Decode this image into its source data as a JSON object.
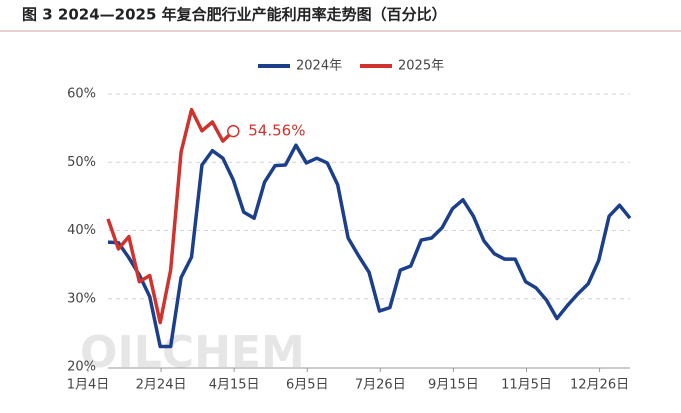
{
  "chart_data": {
    "type": "line",
    "title": "图 3 2024—2025 年复合肥行业产能利用率走势图（百分比）",
    "watermark": "OILCHEM",
    "categories": [
      "1月4日",
      null,
      null,
      null,
      null,
      null,
      null,
      "2月24日",
      null,
      null,
      null,
      null,
      null,
      null,
      "4月15日",
      null,
      null,
      null,
      null,
      null,
      null,
      "6月5日",
      null,
      null,
      null,
      null,
      null,
      null,
      "7月26日",
      null,
      null,
      null,
      null,
      null,
      null,
      "9月15日",
      null,
      null,
      null,
      null,
      null,
      null,
      "11月5日",
      null,
      null,
      null,
      null,
      null,
      null,
      "12月26日",
      null
    ],
    "series": [
      {
        "name": "2024年",
        "color": "#1c3f8c",
        "values": [
          38.3,
          38.2,
          36.0,
          33.5,
          30.3,
          23.0,
          23.0,
          33.1,
          36.1,
          49.6,
          51.7,
          50.6,
          47.4,
          42.7,
          41.8,
          47.1,
          49.5,
          49.6,
          52.5,
          49.9,
          50.6,
          49.9,
          46.7,
          38.9,
          36.3,
          33.9,
          28.2,
          28.7,
          34.2,
          34.8,
          38.6,
          38.9,
          40.4,
          43.2,
          44.5,
          42.1,
          38.5,
          36.6,
          35.8,
          35.8,
          32.5,
          31.6,
          29.8,
          27.1,
          29.0,
          30.7,
          32.2,
          35.6,
          42.1,
          43.7,
          41.8
        ]
      },
      {
        "name": "2025年",
        "color": "#d0332e",
        "values": [
          41.7,
          37.3,
          39.1,
          32.5,
          33.4,
          26.5,
          34.2,
          51.5,
          57.7,
          54.6,
          55.9,
          53.1,
          54.56,
          null,
          null,
          null,
          null,
          null,
          null,
          null,
          null,
          null,
          null,
          null,
          null,
          null,
          null,
          null,
          null,
          null,
          null,
          null,
          null,
          null,
          null,
          null,
          null,
          null,
          null,
          null,
          null,
          null,
          null,
          null,
          null,
          null,
          null,
          null,
          null,
          null,
          null
        ]
      }
    ],
    "annotation": {
      "text": "54.56%"
    },
    "ylim": [
      20,
      60
    ],
    "yticks": [
      {
        "value": 20,
        "label": "20%"
      },
      {
        "value": 30,
        "label": "30%"
      },
      {
        "value": 40,
        "label": "40%"
      },
      {
        "value": 50,
        "label": "50%"
      },
      {
        "value": 60,
        "label": "60%"
      }
    ],
    "grid": true,
    "legend": "top"
  }
}
